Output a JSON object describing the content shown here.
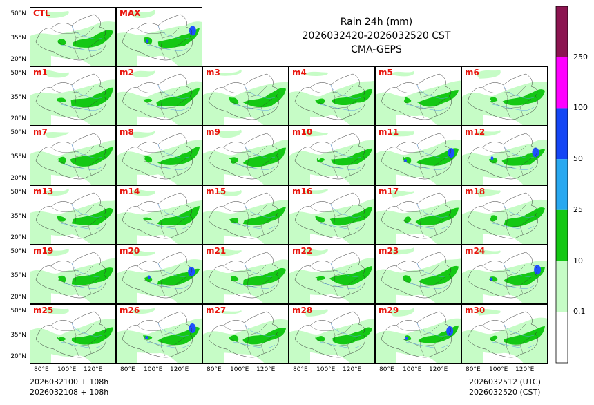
{
  "title": {
    "line1": "Rain 24h (mm)",
    "line2": "2026032420-2026032520 CST",
    "line3": "CMA-GEPS"
  },
  "panels": [
    "CTL",
    "MAX",
    "m1",
    "m2",
    "m3",
    "m4",
    "m5",
    "m6",
    "m7",
    "m8",
    "m9",
    "m10",
    "m11",
    "m12",
    "m13",
    "m14",
    "m15",
    "m16",
    "m17",
    "m18",
    "m19",
    "m20",
    "m21",
    "m22",
    "m23",
    "m24",
    "m25",
    "m26",
    "m27",
    "m28",
    "m29",
    "m30"
  ],
  "lat_labels": [
    "50°N",
    "35°N",
    "20°N"
  ],
  "lon_labels": [
    "80°E",
    "100°E",
    "120°E"
  ],
  "footer": {
    "left1": "2026032100 + 108h",
    "left2": "2026032108 + 108h",
    "right1": "2026032512 (UTC)",
    "right2": "2026032520 (CST)"
  },
  "colorbar": {
    "levels": [
      "0.1",
      "10",
      "25",
      "50",
      "100",
      "250"
    ],
    "colors": [
      "#ffffff",
      "#c6fcc6",
      "#14c814",
      "#28a8f0",
      "#1446f5",
      "#ff00ff",
      "#8c1450"
    ]
  },
  "map_colors": {
    "light": "#c6fcc6",
    "medium": "#14c814",
    "heavy": "#1e50ff",
    "border": "#333333",
    "river": "#5aa0e6"
  }
}
